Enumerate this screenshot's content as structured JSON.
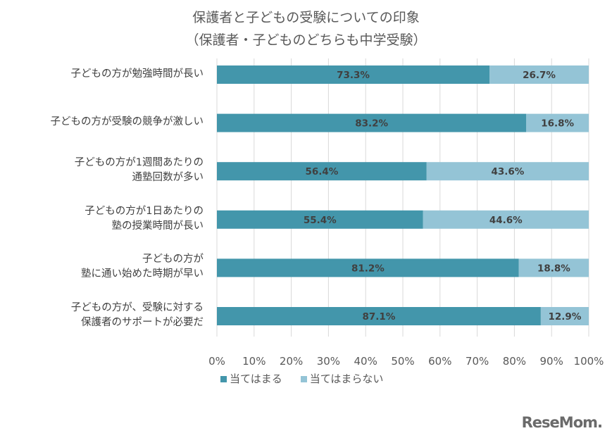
{
  "chart_data": {
    "type": "bar",
    "orientation": "horizontal-stacked-100",
    "title": "保護者と子どもの受験についての印象",
    "subtitle": "（保護者・子どものどちらも中学受験）",
    "categories": [
      [
        "子どもの方が勉強時間が長い"
      ],
      [
        "子どもの方が受験の競争が激しい"
      ],
      [
        "子どもの方が1週間あたりの",
        "通塾回数が多い"
      ],
      [
        "子どもの方が1日あたりの",
        "塾の授業時間が長い"
      ],
      [
        "子どもの方が",
        "塾に通い始めた時期が早い"
      ],
      [
        "子どもの方が、受験に対する",
        "保護者のサポートが必要だ"
      ]
    ],
    "series": [
      {
        "name": "当てはまる",
        "color": "#4396ab",
        "values": [
          73.3,
          83.2,
          56.4,
          55.4,
          81.2,
          87.1
        ]
      },
      {
        "name": "当てはまらない",
        "color": "#94c4d6",
        "values": [
          26.7,
          16.8,
          43.6,
          44.6,
          18.8,
          12.9
        ]
      }
    ],
    "xlim": [
      0,
      100
    ],
    "xticks": [
      "0%",
      "10%",
      "20%",
      "30%",
      "40%",
      "50%",
      "60%",
      "70%",
      "80%",
      "90%",
      "100%"
    ],
    "grid": true,
    "legend_position": "bottom-left"
  },
  "logo": "ReseMom"
}
